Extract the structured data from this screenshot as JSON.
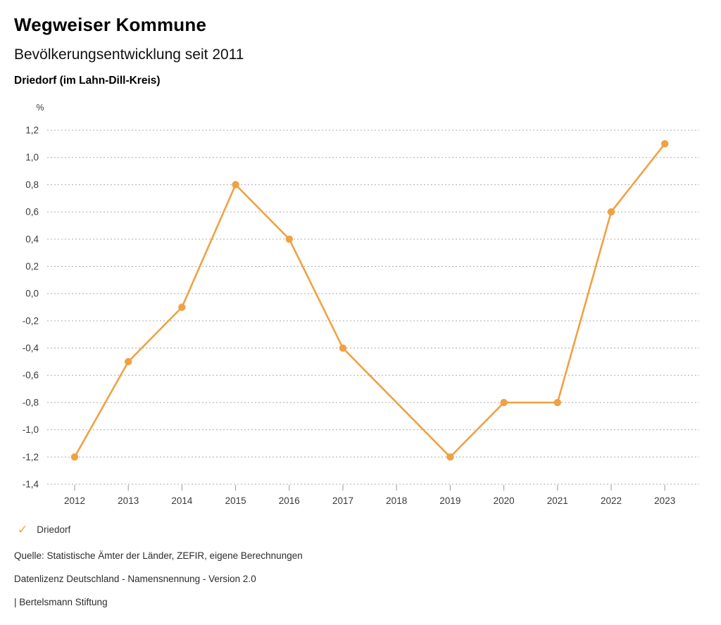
{
  "header": {
    "title": "Wegweiser Kommune",
    "subtitle": "Bevölkerungsentwicklung seit 2011",
    "region": "Driedorf (im Lahn-Dill-Kreis)"
  },
  "chart_data": {
    "type": "line",
    "x": [
      "2012",
      "2013",
      "2014",
      "2015",
      "2016",
      "2017",
      "2018",
      "2019",
      "2020",
      "2021",
      "2022",
      "2023"
    ],
    "series": [
      {
        "name": "Driedorf",
        "color": "#F0A143",
        "values": [
          -1.2,
          -0.5,
          -0.1,
          0.8,
          0.4,
          -0.4,
          null,
          -1.2,
          -0.8,
          -0.8,
          0.6,
          1.1
        ]
      }
    ],
    "title": "Bevölkerungsentwicklung seit 2011",
    "xlabel": "",
    "ylabel": "%",
    "ylim": [
      -1.4,
      1.2
    ],
    "ytick_step": 0.2,
    "ytick_labels": [
      "1,2",
      "1,0",
      "0,8",
      "0,6",
      "0,4",
      "0,2",
      "0,0",
      "-0,2",
      "-0,4",
      "-0,6",
      "-0,8",
      "-1,0",
      "-1,2",
      "-1,4"
    ],
    "grid": "horizontal-dotted",
    "legend_position": "bottom-left",
    "marker": "circle"
  },
  "legend": {
    "marker": "✓",
    "label": "Driedorf"
  },
  "footer": {
    "source": "Quelle: Statistische Ämter der Länder, ZEFIR, eigene Berechnungen",
    "license": "Datenlizenz Deutschland - Namensnennung - Version 2.0",
    "attribution": "| Bertelsmann Stiftung"
  },
  "colors": {
    "accent": "#F0A143",
    "grid": "#ABABAB",
    "text": "#333333"
  }
}
